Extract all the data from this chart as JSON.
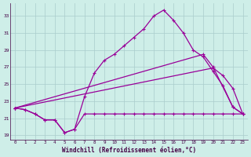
{
  "xlabel": "Windchill (Refroidissement éolien,°C)",
  "background_color": "#ceeee8",
  "grid_color": "#aacccc",
  "line_color": "#990099",
  "xlim": [
    -0.5,
    23.5
  ],
  "ylim": [
    18.5,
    34.5
  ],
  "yticks": [
    19,
    21,
    23,
    25,
    27,
    29,
    31,
    33
  ],
  "xticks": [
    0,
    1,
    2,
    3,
    4,
    5,
    6,
    7,
    8,
    9,
    10,
    11,
    12,
    13,
    14,
    15,
    16,
    17,
    18,
    19,
    20,
    21,
    22,
    23
  ],
  "series_jagged_x": [
    0,
    1,
    2,
    3,
    4,
    5,
    6,
    7,
    8,
    9,
    10,
    11,
    12,
    13,
    14,
    15,
    16,
    17,
    18,
    19,
    20,
    21,
    22,
    23
  ],
  "series_jagged_y": [
    22.2,
    22.0,
    21.5,
    20.8,
    20.8,
    19.3,
    19.7,
    21.5,
    21.5,
    21.5,
    21.5,
    21.5,
    21.5,
    21.5,
    21.5,
    21.5,
    21.5,
    21.5,
    21.5,
    21.5,
    21.5,
    21.5,
    21.5,
    21.5
  ],
  "series_diag1_x": [
    0,
    19,
    20,
    22,
    23
  ],
  "series_diag1_y": [
    22.2,
    28.5,
    27.0,
    22.3,
    21.5
  ],
  "series_diag2_x": [
    0,
    20,
    21,
    22,
    23
  ],
  "series_diag2_y": [
    22.2,
    26.9,
    26.0,
    24.5,
    21.5
  ],
  "series_peak_x": [
    0,
    1,
    2,
    3,
    4,
    5,
    6,
    7,
    8,
    9,
    10,
    11,
    12,
    13,
    14,
    15,
    16,
    17,
    18,
    19,
    20,
    21,
    22,
    23
  ],
  "series_peak_y": [
    22.2,
    22.0,
    21.5,
    20.8,
    20.8,
    19.3,
    19.7,
    23.5,
    26.3,
    27.8,
    28.5,
    29.5,
    30.5,
    31.5,
    33.0,
    33.7,
    32.5,
    31.0,
    29.0,
    28.2,
    26.5,
    24.8,
    22.3,
    21.5
  ]
}
